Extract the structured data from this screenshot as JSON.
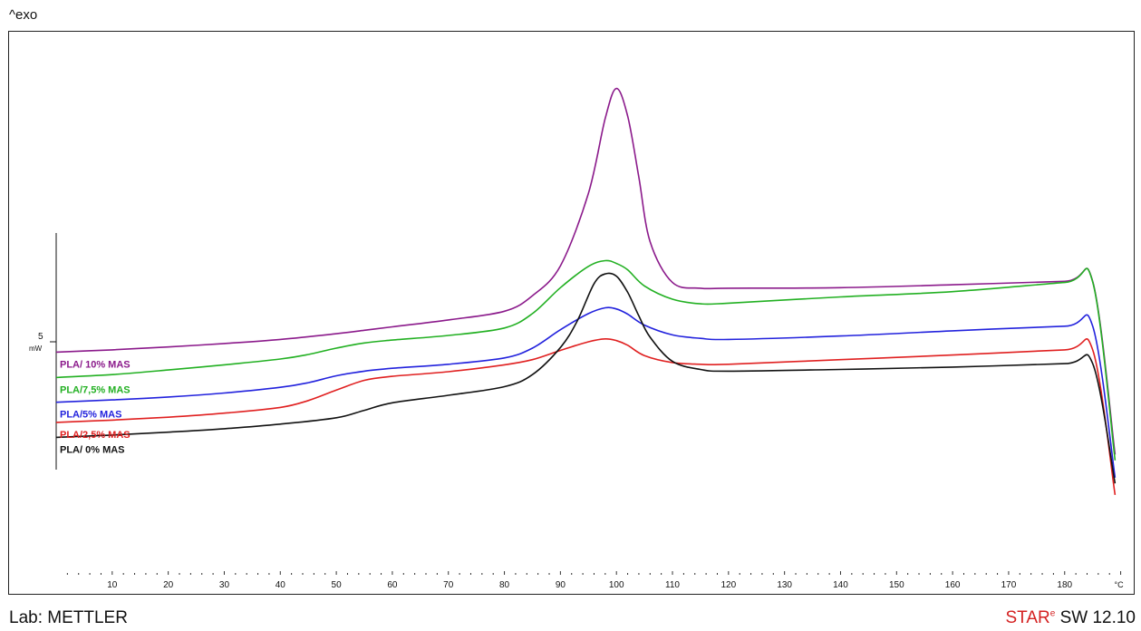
{
  "header": {
    "exo_label": "^exo"
  },
  "footer": {
    "lab": "Lab: METTLER",
    "brand_prefix": "STAR",
    "brand_suffix": "SW 12.10"
  },
  "chart_data": {
    "type": "line",
    "xlabel": "°C",
    "x_unit": "°C",
    "xlim": [
      0,
      190
    ],
    "x_ticks": [
      10,
      20,
      30,
      40,
      50,
      60,
      70,
      80,
      90,
      100,
      110,
      120,
      130,
      140,
      150,
      160,
      170,
      180
    ],
    "scale_bar": {
      "value": "5",
      "unit": "mW"
    },
    "ylabel": "",
    "grid": false,
    "legend": "inline labels at left of each curve",
    "series": [
      {
        "name": "PLA/ 10% MAS",
        "color": "#8b1a8b",
        "x": [
          0,
          10,
          20,
          30,
          40,
          50,
          55,
          60,
          70,
          80,
          85,
          90,
          95,
          98,
          100,
          102,
          104,
          106,
          110,
          115,
          120,
          140,
          160,
          180,
          185,
          189
        ],
        "y": [
          5.4,
          5.6,
          5.85,
          6.15,
          6.5,
          7.0,
          7.3,
          7.6,
          8.2,
          8.95,
          10.3,
          12.9,
          19.2,
          25.7,
          28.3,
          25.9,
          20.6,
          15.0,
          11.45,
          10.95,
          10.95,
          11.0,
          11.25,
          11.55,
          11.55,
          -3.5
        ]
      },
      {
        "name": "PLA/7,5% MAS",
        "color": "#22b022",
        "x": [
          0,
          10,
          20,
          30,
          40,
          45,
          50,
          55,
          60,
          70,
          80,
          85,
          90,
          95,
          98,
          100,
          102,
          105,
          110,
          115,
          120,
          140,
          160,
          180,
          185,
          189
        ],
        "y": [
          3.2,
          3.45,
          3.85,
          4.3,
          4.8,
          5.2,
          5.75,
          6.2,
          6.45,
          6.85,
          7.5,
          8.75,
          11.0,
          12.85,
          13.35,
          13.1,
          12.55,
          11.15,
          10.0,
          9.6,
          9.65,
          10.2,
          10.65,
          11.45,
          11.5,
          -4.0
        ]
      },
      {
        "name": "PLA/5% MAS",
        "color": "#2222dd",
        "x": [
          0,
          10,
          20,
          30,
          40,
          45,
          50,
          55,
          60,
          70,
          80,
          85,
          90,
          95,
          98,
          100,
          102,
          105,
          110,
          115,
          120,
          140,
          160,
          180,
          185,
          189
        ],
        "y": [
          1.05,
          1.25,
          1.5,
          1.85,
          2.35,
          2.75,
          3.35,
          3.75,
          4.0,
          4.35,
          4.9,
          5.75,
          7.35,
          8.75,
          9.25,
          9.15,
          8.7,
          7.75,
          6.9,
          6.6,
          6.5,
          6.8,
          7.25,
          7.65,
          7.65,
          -5.5
        ]
      },
      {
        "name": "PLA/2,5% MAS",
        "color": "#e02020",
        "x": [
          0,
          10,
          20,
          30,
          40,
          45,
          50,
          55,
          60,
          70,
          80,
          85,
          90,
          95,
          98,
          100,
          102,
          105,
          110,
          115,
          120,
          140,
          160,
          180,
          185,
          189
        ],
        "y": [
          -0.7,
          -0.5,
          -0.25,
          0.1,
          0.6,
          1.2,
          2.1,
          2.95,
          3.3,
          3.7,
          4.3,
          4.75,
          5.55,
          6.3,
          6.55,
          6.4,
          6.0,
          5.1,
          4.5,
          4.35,
          4.35,
          4.75,
          5.15,
          5.6,
          5.6,
          -7.0
        ]
      },
      {
        "name": "PLA/ 0% MAS",
        "color": "#111111",
        "x": [
          0,
          10,
          20,
          30,
          40,
          50,
          55,
          60,
          70,
          80,
          85,
          90,
          93,
          96,
          98,
          100,
          102,
          104,
          106,
          110,
          115,
          120,
          140,
          160,
          180,
          185,
          189
        ],
        "y": [
          -2.0,
          -1.8,
          -1.55,
          -1.25,
          -0.85,
          -0.3,
          0.35,
          1.0,
          1.65,
          2.4,
          3.45,
          5.8,
          8.1,
          11.35,
          12.2,
          12.0,
          10.6,
          8.55,
          6.7,
          4.6,
          3.9,
          3.75,
          3.9,
          4.1,
          4.4,
          4.4,
          -6.0
        ]
      }
    ]
  }
}
